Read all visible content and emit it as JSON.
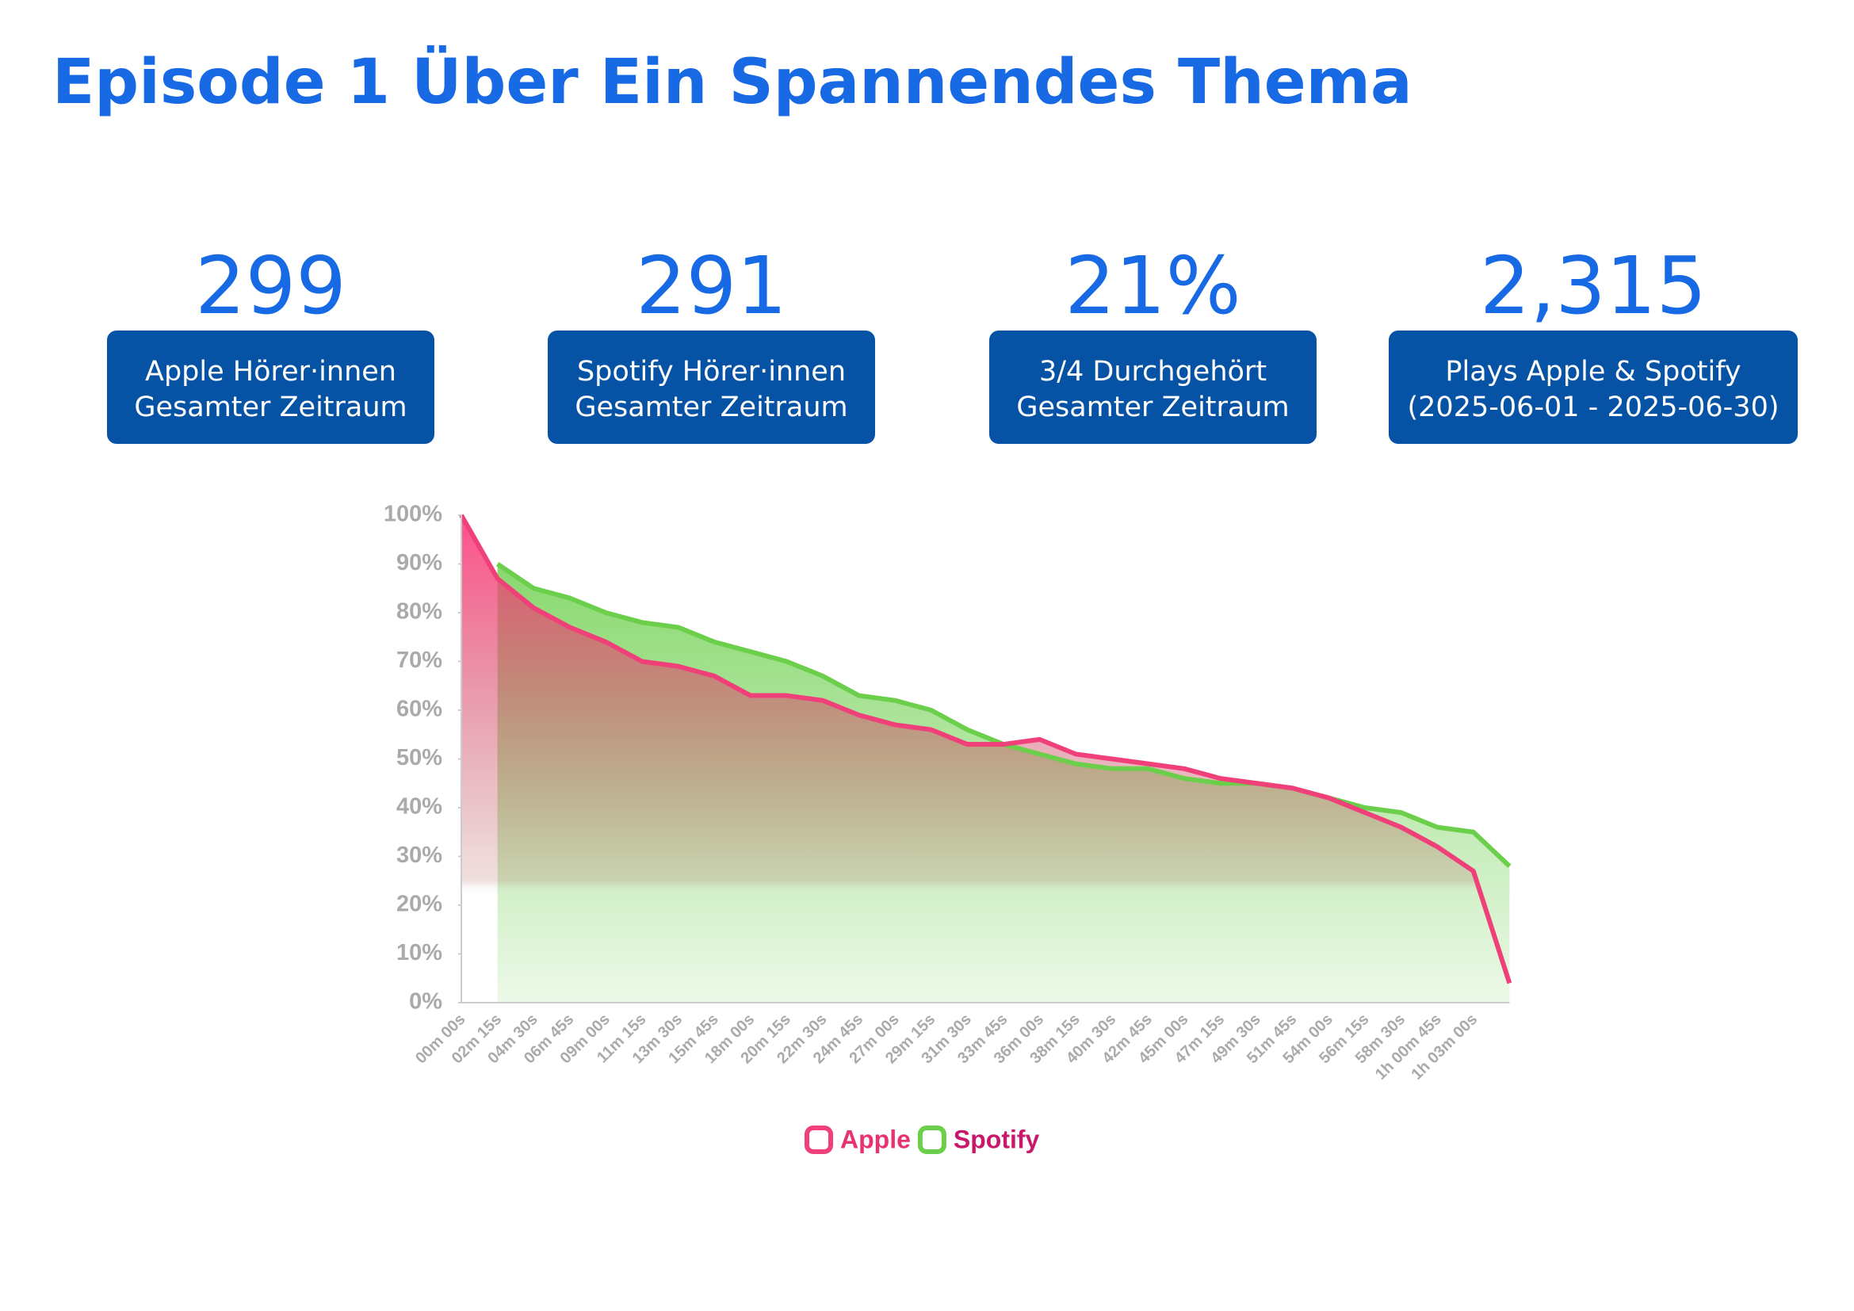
{
  "title": "Episode 1 Über Ein Spannendes Thema",
  "stats": [
    {
      "value": "299",
      "label": [
        "Apple Hörer·innen",
        "Gesamter Zeitraum"
      ]
    },
    {
      "value": "291",
      "label": [
        "Spotify Hörer·innen",
        "Gesamter Zeitraum"
      ]
    },
    {
      "value": "21%",
      "label": [
        "3/4 Durchgehört",
        "Gesamter Zeitraum"
      ]
    },
    {
      "value": "2,315",
      "label": [
        "Plays Apple & Spotify",
        "(2025-06-01 - 2025-06-30)"
      ]
    }
  ],
  "chart_data": {
    "type": "area",
    "categories": [
      "00m 00s",
      "02m 15s",
      "04m 30s",
      "06m 45s",
      "09m 00s",
      "11m 15s",
      "13m 30s",
      "15m 45s",
      "18m 00s",
      "20m 15s",
      "22m 30s",
      "24m 45s",
      "27m 00s",
      "29m 15s",
      "31m 30s",
      "33m 45s",
      "36m 00s",
      "38m 15s",
      "40m 30s",
      "42m 45s",
      "45m 00s",
      "47m 15s",
      "49m 30s",
      "51m 45s",
      "54m 00s",
      "56m 15s",
      "58m 30s",
      "1h 00m 45s",
      "1h 03m 00s",
      null
    ],
    "series": [
      {
        "name": "Apple",
        "color": "#f0407a",
        "values": [
          100,
          87,
          81,
          77,
          74,
          70,
          69,
          67,
          63,
          63,
          62,
          59,
          57,
          56,
          53,
          53,
          54,
          51,
          50,
          49,
          48,
          46,
          45,
          44,
          42,
          39,
          36,
          32,
          27,
          4
        ]
      },
      {
        "name": "Spotify",
        "color": "#6ccf4c",
        "values": [
          null,
          90,
          85,
          83,
          80,
          78,
          77,
          74,
          72,
          70,
          67,
          63,
          62,
          60,
          56,
          53,
          51,
          49,
          48,
          48,
          46,
          45,
          45,
          44,
          42,
          40,
          39,
          36,
          35,
          28
        ]
      }
    ],
    "ylim": [
      0,
      100
    ],
    "yticks": [
      {
        "value": 0,
        "label": "0%"
      },
      {
        "value": 10,
        "label": "10%"
      },
      {
        "value": 20,
        "label": "20%"
      },
      {
        "value": 30,
        "label": "30%"
      },
      {
        "value": 40,
        "label": "40%"
      },
      {
        "value": 50,
        "label": "50%"
      },
      {
        "value": 60,
        "label": "60%"
      },
      {
        "value": 70,
        "label": "70%"
      },
      {
        "value": 80,
        "label": "80%"
      },
      {
        "value": 90,
        "label": "90%"
      },
      {
        "value": 100,
        "label": "100%"
      }
    ],
    "legend": "bottom"
  }
}
